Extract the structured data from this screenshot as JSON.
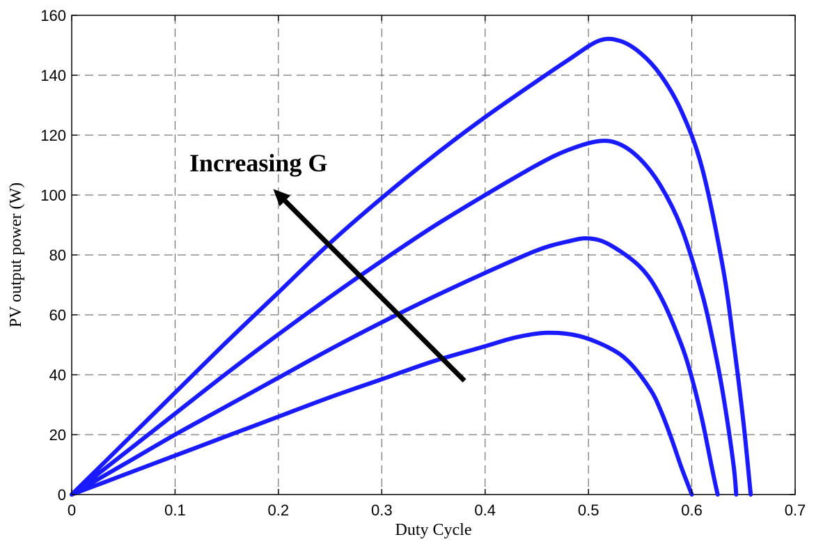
{
  "chart_data": {
    "type": "line",
    "title": "",
    "xlabel": "Duty Cycle",
    "ylabel": "PV output power (W)",
    "xlim": [
      0,
      0.7
    ],
    "ylim": [
      0,
      160
    ],
    "xticks": [
      0,
      0.1,
      0.2,
      0.3,
      0.4,
      0.5,
      0.6,
      0.7
    ],
    "yticks": [
      0,
      20,
      40,
      60,
      80,
      100,
      120,
      140,
      160
    ],
    "xtick_labels": [
      "0",
      "0.1",
      "0.2",
      "0.3",
      "0.4",
      "0.5",
      "0.6",
      "0.7"
    ],
    "ytick_labels": [
      "0",
      "20",
      "40",
      "60",
      "80",
      "100",
      "120",
      "140",
      "160"
    ],
    "grid": true,
    "series_color": "#1a1aff",
    "series": [
      {
        "x": [
          0,
          0.05,
          0.1,
          0.15,
          0.2,
          0.25,
          0.3,
          0.35,
          0.4,
          0.43,
          0.46,
          0.49,
          0.52,
          0.54,
          0.56,
          0.57,
          0.58,
          0.59,
          0.6
        ],
        "y": [
          0,
          6.5,
          13,
          19.5,
          26,
          32.5,
          38.5,
          44.5,
          49.5,
          52.5,
          54,
          53,
          49,
          44,
          35,
          28,
          19,
          9,
          0
        ]
      },
      {
        "x": [
          0,
          0.05,
          0.1,
          0.15,
          0.2,
          0.25,
          0.3,
          0.35,
          0.4,
          0.45,
          0.48,
          0.5,
          0.52,
          0.55,
          0.57,
          0.59,
          0.6,
          0.61,
          0.62,
          0.625
        ],
        "y": [
          0,
          10,
          20,
          29.5,
          39,
          48.5,
          57.5,
          66,
          74,
          81.5,
          84.5,
          85.5,
          83.5,
          76,
          66,
          50,
          39,
          25,
          8,
          0
        ]
      },
      {
        "x": [
          0,
          0.05,
          0.1,
          0.15,
          0.2,
          0.25,
          0.3,
          0.35,
          0.4,
          0.45,
          0.48,
          0.51,
          0.53,
          0.55,
          0.57,
          0.59,
          0.61,
          0.62,
          0.63,
          0.64,
          0.643
        ],
        "y": [
          0,
          13.5,
          27,
          40.5,
          53.5,
          66,
          78,
          89.5,
          100,
          110,
          115,
          118,
          117,
          112,
          103,
          89,
          67,
          52,
          34,
          11,
          0
        ]
      },
      {
        "x": [
          0,
          0.05,
          0.1,
          0.15,
          0.2,
          0.25,
          0.3,
          0.35,
          0.4,
          0.45,
          0.48,
          0.51,
          0.53,
          0.55,
          0.57,
          0.59,
          0.61,
          0.63,
          0.64,
          0.65,
          0.657
        ],
        "y": [
          0,
          17,
          34,
          51,
          67.5,
          84,
          99,
          113,
          126,
          138,
          145,
          151.5,
          151.5,
          147.5,
          140,
          128,
          109,
          76,
          52,
          24,
          0
        ]
      }
    ],
    "annotation": {
      "text": "Increasing G",
      "arrow_from": [
        0.38,
        38
      ],
      "arrow_to": [
        0.195,
        102
      ]
    }
  }
}
